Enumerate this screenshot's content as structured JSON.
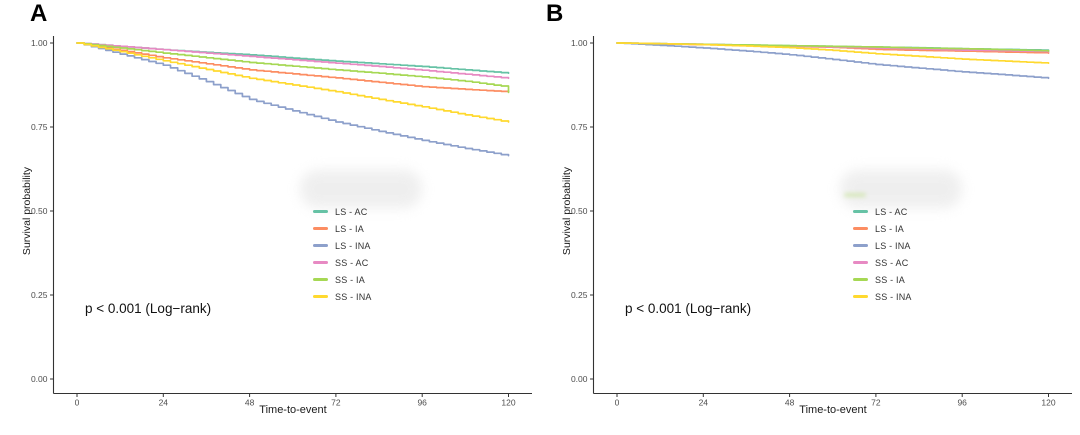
{
  "figure": {
    "background": "#ffffff",
    "axis_color": "#333333",
    "tick_label_color": "#4d4d4d",
    "panels": [
      {
        "label": "A"
      },
      {
        "label": "B"
      }
    ]
  },
  "chart_data": [
    {
      "type": "line",
      "subtype": "kaplan-meier-survival",
      "panel": "A",
      "title": "",
      "xlabel": "Time-to-event",
      "ylabel": "Survival probability",
      "annotation": "p < 0.001 (Log−rank)",
      "xlim": [
        0,
        120
      ],
      "ylim": [
        0,
        1
      ],
      "x_ticks": [
        0,
        24,
        48,
        72,
        96,
        120
      ],
      "y_tick_values": [
        1.0,
        0.75,
        0.5,
        0.25,
        0.0
      ],
      "y_tick_labels": [
        "1.00",
        "0.75",
        "0.50",
        "0.25",
        "0.00"
      ],
      "grid": "off",
      "legend_position": "inside-center-right",
      "x": [
        0,
        12,
        24,
        36,
        48,
        60,
        72,
        84,
        96,
        108,
        118,
        120
      ],
      "series": [
        {
          "name": "LS - AC",
          "color": "#66C2A5",
          "values": [
            1.0,
            0.99,
            0.98,
            0.972,
            0.965,
            0.955,
            0.946,
            0.938,
            0.93,
            0.92,
            0.912,
            0.91
          ]
        },
        {
          "name": "LS - IA",
          "color": "#FC8D62",
          "values": [
            1.0,
            0.978,
            0.956,
            0.938,
            0.92,
            0.908,
            0.896,
            0.883,
            0.87,
            0.862,
            0.856,
            0.855
          ]
        },
        {
          "name": "LS - INA",
          "color": "#8DA0CB",
          "values": [
            1.0,
            0.967,
            0.934,
            0.885,
            0.832,
            0.798,
            0.765,
            0.737,
            0.71,
            0.686,
            0.668,
            0.665
          ]
        },
        {
          "name": "SS - AC",
          "color": "#E78AC3",
          "values": [
            1.0,
            0.99,
            0.98,
            0.97,
            0.96,
            0.95,
            0.94,
            0.93,
            0.919,
            0.907,
            0.897,
            0.895
          ]
        },
        {
          "name": "SS - IA",
          "color": "#A6D854",
          "values": [
            1.0,
            0.985,
            0.97,
            0.956,
            0.942,
            0.931,
            0.92,
            0.91,
            0.899,
            0.886,
            0.872,
            0.853
          ]
        },
        {
          "name": "SS - INA",
          "color": "#FFD92F",
          "values": [
            1.0,
            0.974,
            0.947,
            0.921,
            0.895,
            0.875,
            0.855,
            0.832,
            0.81,
            0.786,
            0.768,
            0.765
          ]
        }
      ]
    },
    {
      "type": "line",
      "subtype": "kaplan-meier-survival",
      "panel": "B",
      "title": "",
      "xlabel": "Time-to-event",
      "ylabel": "Survival probability",
      "annotation": "p < 0.001 (Log−rank)",
      "xlim": [
        0,
        120
      ],
      "ylim": [
        0,
        1
      ],
      "x_ticks": [
        0,
        24,
        48,
        72,
        96,
        120
      ],
      "y_tick_values": [
        1.0,
        0.75,
        0.5,
        0.25,
        0.0
      ],
      "y_tick_labels": [
        "1.00",
        "0.75",
        "0.50",
        "0.25",
        "0.00"
      ],
      "grid": "off",
      "legend_position": "inside-center-right",
      "x": [
        0,
        12,
        24,
        36,
        48,
        60,
        72,
        84,
        96,
        108,
        118,
        120
      ],
      "series": [
        {
          "name": "LS - AC",
          "color": "#66C2A5",
          "values": [
            1.0,
            0.998,
            0.996,
            0.994,
            0.992,
            0.99,
            0.988,
            0.986,
            0.983,
            0.981,
            0.979,
            0.978
          ]
        },
        {
          "name": "LS - IA",
          "color": "#FC8D62",
          "values": [
            1.0,
            0.997,
            0.995,
            0.992,
            0.99,
            0.987,
            0.981,
            0.978,
            0.976,
            0.973,
            0.971,
            0.97
          ]
        },
        {
          "name": "LS - INA",
          "color": "#8DA0CB",
          "values": [
            1.0,
            0.993,
            0.985,
            0.976,
            0.965,
            0.951,
            0.936,
            0.925,
            0.914,
            0.905,
            0.897,
            0.895
          ]
        },
        {
          "name": "SS - AC",
          "color": "#E78AC3",
          "values": [
            1.0,
            0.998,
            0.996,
            0.993,
            0.991,
            0.988,
            0.985,
            0.982,
            0.979,
            0.977,
            0.975,
            0.974
          ]
        },
        {
          "name": "SS - IA",
          "color": "#A6D854",
          "values": [
            1.0,
            0.998,
            0.996,
            0.994,
            0.992,
            0.99,
            0.988,
            0.985,
            0.983,
            0.98,
            0.977,
            0.976
          ]
        },
        {
          "name": "SS - INA",
          "color": "#FFD92F",
          "values": [
            1.0,
            0.998,
            0.995,
            0.991,
            0.986,
            0.978,
            0.968,
            0.96,
            0.952,
            0.946,
            0.941,
            0.94
          ]
        }
      ]
    }
  ]
}
